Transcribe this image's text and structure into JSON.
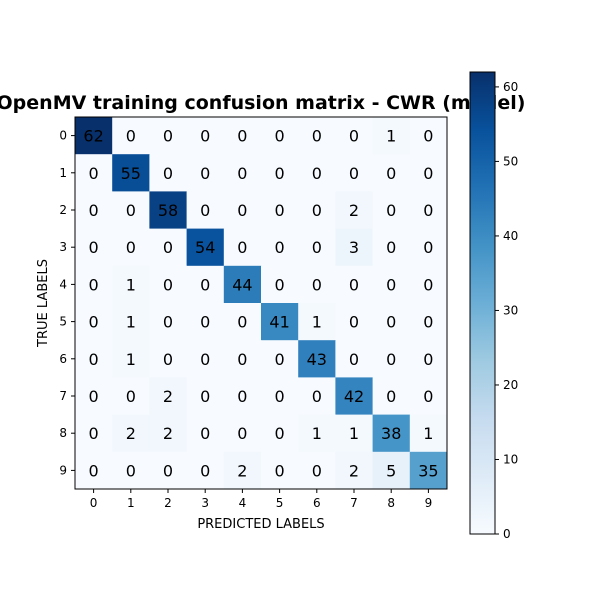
{
  "chart_data": {
    "type": "heatmap",
    "title": "OpenMV training confusion matrix - CWR (model)",
    "xlabel": "PREDICTED LABELS",
    "ylabel": "TRUE LABELS",
    "x_categories": [
      "0",
      "1",
      "2",
      "3",
      "4",
      "5",
      "6",
      "7",
      "8",
      "9"
    ],
    "y_categories": [
      "0",
      "1",
      "2",
      "3",
      "4",
      "5",
      "6",
      "7",
      "8",
      "9"
    ],
    "matrix": [
      [
        62,
        0,
        0,
        0,
        0,
        0,
        0,
        0,
        1,
        0
      ],
      [
        0,
        55,
        0,
        0,
        0,
        0,
        0,
        0,
        0,
        0
      ],
      [
        0,
        0,
        58,
        0,
        0,
        0,
        0,
        2,
        0,
        0
      ],
      [
        0,
        0,
        0,
        54,
        0,
        0,
        0,
        3,
        0,
        0
      ],
      [
        0,
        1,
        0,
        0,
        44,
        0,
        0,
        0,
        0,
        0
      ],
      [
        0,
        1,
        0,
        0,
        0,
        41,
        1,
        0,
        0,
        0
      ],
      [
        0,
        1,
        0,
        0,
        0,
        0,
        43,
        0,
        0,
        0
      ],
      [
        0,
        0,
        2,
        0,
        0,
        0,
        0,
        42,
        0,
        0
      ],
      [
        0,
        2,
        2,
        0,
        0,
        0,
        1,
        1,
        38,
        1
      ],
      [
        0,
        0,
        0,
        0,
        2,
        0,
        0,
        2,
        5,
        35
      ]
    ],
    "colormap": "Blues",
    "vmin": 0,
    "vmax": 62,
    "colorbar_ticks": [
      "0",
      "10",
      "20",
      "30",
      "40",
      "50",
      "60"
    ],
    "colorbar_tick_values": [
      0,
      10,
      20,
      30,
      40,
      50,
      60
    ],
    "grid": false
  }
}
